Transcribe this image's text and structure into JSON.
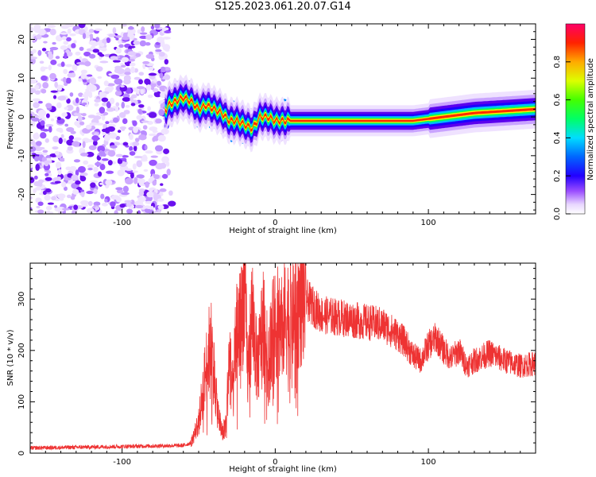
{
  "title": "S125.2023.061.20.07.G14",
  "colors": {
    "snr_line": "#ee3333",
    "axis": "#000000"
  },
  "chart_data": [
    {
      "type": "heatmap",
      "xlabel": "Height of straight line (km)",
      "ylabel": "Frequency (Hz)",
      "xlim": [
        -160,
        170
      ],
      "ylim": [
        -25,
        24
      ],
      "xticks": [
        -100,
        0,
        100
      ],
      "xtick_labels": [
        "-100",
        "0",
        "100"
      ],
      "yticks": [
        -20,
        -10,
        0,
        10,
        20
      ],
      "ytick_labels": [
        "-20",
        "-10",
        "0",
        "10",
        "20"
      ],
      "colorbar": {
        "label": "Normalized spectral amplitude",
        "range": [
          0,
          1
        ],
        "ticks": [
          0.0,
          0.2,
          0.4,
          0.6,
          0.8
        ],
        "tick_labels": [
          "0.0",
          "0.2",
          "0.4",
          "0.6",
          "0.8"
        ]
      },
      "ridge": {
        "x": [
          -70,
          -60,
          -55,
          -50,
          -45,
          -40,
          -35,
          -30,
          -25,
          -20,
          -15,
          -10,
          -5,
          0,
          5,
          10,
          30,
          60,
          90,
          110,
          130,
          150,
          170
        ],
        "y": [
          3,
          5,
          4,
          2,
          3,
          2,
          1,
          -1,
          -1,
          -2,
          -3,
          0,
          0,
          -1,
          -1,
          -1,
          -1,
          -1,
          -1,
          0,
          1,
          1.5,
          2
        ]
      }
    },
    {
      "type": "line",
      "xlabel": "Height of straight line (km)",
      "ylabel": "SNR (10 * v/v)",
      "xlim": [
        -160,
        170
      ],
      "ylim": [
        0,
        370
      ],
      "xticks": [
        -100,
        0,
        100
      ],
      "xtick_labels": [
        "-100",
        "0",
        "100"
      ],
      "yticks": [
        0,
        100,
        200,
        300
      ],
      "ytick_labels": [
        "0",
        "100",
        "200",
        "300"
      ],
      "series": [
        {
          "x": [
            -160,
            -120,
            -80,
            -60,
            -55,
            -50,
            -45,
            -42,
            -40,
            -38,
            -35,
            -32,
            -30,
            -28,
            -25,
            -22,
            -20,
            -18,
            -15,
            -12,
            -10,
            -8,
            -5,
            -3,
            0,
            5,
            10,
            15,
            20,
            30,
            40,
            50,
            60,
            70,
            80,
            85,
            90,
            95,
            100,
            105,
            110,
            115,
            120,
            125,
            130,
            140,
            150,
            160,
            170
          ],
          "values": [
            10,
            12,
            14,
            15,
            20,
            60,
            170,
            220,
            160,
            90,
            40,
            60,
            200,
            120,
            240,
            260,
            340,
            150,
            280,
            170,
            200,
            270,
            180,
            220,
            250,
            260,
            275,
            290,
            300,
            270,
            265,
            260,
            255,
            250,
            230,
            215,
            190,
            180,
            210,
            225,
            200,
            185,
            200,
            170,
            180,
            195,
            180,
            170,
            175
          ]
        }
      ]
    }
  ]
}
